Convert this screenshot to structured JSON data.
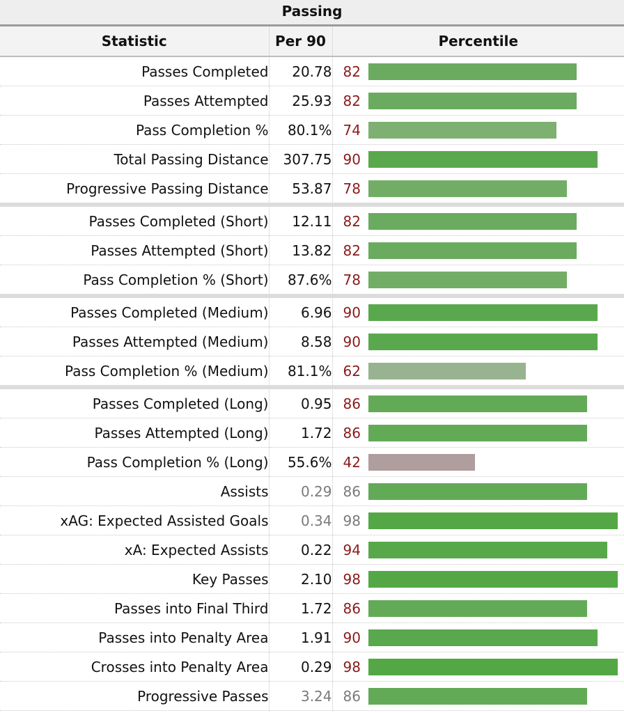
{
  "title": "Passing",
  "headers": {
    "statistic": "Statistic",
    "per90": "Per 90",
    "percentile": "Percentile"
  },
  "rows": [
    {
      "stat": "Passes Completed",
      "per90": "20.78",
      "percentile": 82,
      "color": "#6aab5f"
    },
    {
      "stat": "Passes Attempted",
      "per90": "25.93",
      "percentile": 82,
      "color": "#6aab5f"
    },
    {
      "stat": "Pass Completion %",
      "per90": "80.1%",
      "percentile": 74,
      "color": "#7db071"
    },
    {
      "stat": "Total Passing Distance",
      "per90": "307.75",
      "percentile": 90,
      "color": "#5aa84d"
    },
    {
      "stat": "Progressive Passing Distance",
      "per90": "53.87",
      "percentile": 78,
      "color": "#72ad66"
    },
    {
      "stat": "Passes Completed (Short)",
      "per90": "12.11",
      "percentile": 82,
      "color": "#6aab5f",
      "sep": true
    },
    {
      "stat": "Passes Attempted (Short)",
      "per90": "13.82",
      "percentile": 82,
      "color": "#6aab5f"
    },
    {
      "stat": "Pass Completion % (Short)",
      "per90": "87.6%",
      "percentile": 78,
      "color": "#72ad66"
    },
    {
      "stat": "Passes Completed (Medium)",
      "per90": "6.96",
      "percentile": 90,
      "color": "#5aa84d",
      "sep": true
    },
    {
      "stat": "Passes Attempted (Medium)",
      "per90": "8.58",
      "percentile": 90,
      "color": "#5aa84d"
    },
    {
      "stat": "Pass Completion % (Medium)",
      "per90": "81.1%",
      "percentile": 62,
      "color": "#98b38f"
    },
    {
      "stat": "Passes Completed (Long)",
      "per90": "0.95",
      "percentile": 86,
      "color": "#63aa57",
      "sep": true
    },
    {
      "stat": "Passes Attempted (Long)",
      "per90": "1.72",
      "percentile": 86,
      "color": "#63aa57"
    },
    {
      "stat": "Pass Completion % (Long)",
      "per90": "55.6%",
      "percentile": 42,
      "color": "#b09d9d"
    },
    {
      "stat": "Assists",
      "per90": "0.29",
      "percentile": 86,
      "color": "#63aa57",
      "muted": true
    },
    {
      "stat": "xAG: Expected Assisted Goals",
      "per90": "0.34",
      "percentile": 98,
      "color": "#53a845",
      "muted": true
    },
    {
      "stat": "xA: Expected Assists",
      "per90": "0.22",
      "percentile": 94,
      "color": "#57a849"
    },
    {
      "stat": "Key Passes",
      "per90": "2.10",
      "percentile": 98,
      "color": "#53a845"
    },
    {
      "stat": "Passes into Final Third",
      "per90": "1.72",
      "percentile": 86,
      "color": "#63aa57"
    },
    {
      "stat": "Passes into Penalty Area",
      "per90": "1.91",
      "percentile": 90,
      "color": "#5aa84d"
    },
    {
      "stat": "Crosses into Penalty Area",
      "per90": "0.29",
      "percentile": 98,
      "color": "#53a845"
    },
    {
      "stat": "Progressive Passes",
      "per90": "3.24",
      "percentile": 86,
      "color": "#63aa57",
      "muted": true
    }
  ]
}
